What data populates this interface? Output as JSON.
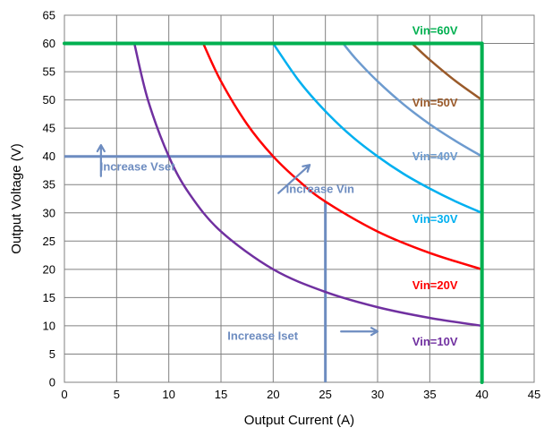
{
  "chart_data": {
    "type": "line",
    "title": "",
    "xlabel": "Output Current (A)",
    "ylabel": "Output Voltage (V)",
    "xlim": [
      0,
      45
    ],
    "ylim": [
      0,
      65
    ],
    "xticks": [
      0,
      5,
      10,
      15,
      20,
      25,
      30,
      35,
      40,
      45
    ],
    "yticks": [
      0,
      5,
      10,
      15,
      20,
      25,
      30,
      35,
      40,
      45,
      50,
      55,
      60,
      65
    ],
    "grid": true,
    "legend": "inline labels on right side",
    "series": [
      {
        "name": "Vin=10V",
        "color": "#7030a0",
        "points": [
          [
            6.7,
            60
          ],
          [
            8,
            50
          ],
          [
            10,
            40
          ],
          [
            12,
            33.3
          ],
          [
            15,
            26.7
          ],
          [
            20,
            20
          ],
          [
            25,
            16
          ],
          [
            30,
            13.3
          ],
          [
            35,
            11.4
          ],
          [
            40,
            10
          ]
        ]
      },
      {
        "name": "Vin=20V",
        "color": "#ff0000",
        "points": [
          [
            13.3,
            60
          ],
          [
            15,
            53.3
          ],
          [
            17.5,
            45.7
          ],
          [
            20,
            40
          ],
          [
            22.5,
            35.6
          ],
          [
            25,
            32
          ],
          [
            30,
            26.7
          ],
          [
            35,
            22.9
          ],
          [
            40,
            20
          ]
        ]
      },
      {
        "name": "Vin=30V",
        "color": "#00b0f0",
        "points": [
          [
            20,
            60
          ],
          [
            22.5,
            53.3
          ],
          [
            25,
            48
          ],
          [
            27.5,
            43.6
          ],
          [
            30,
            40
          ],
          [
            32.5,
            36.9
          ],
          [
            35,
            34.3
          ],
          [
            37.5,
            32
          ],
          [
            40,
            30
          ]
        ]
      },
      {
        "name": "Vin=40V",
        "color": "#6d9bcf",
        "points": [
          [
            26.7,
            60
          ],
          [
            28,
            57.1
          ],
          [
            30,
            53.3
          ],
          [
            32.5,
            49.2
          ],
          [
            35,
            45.7
          ],
          [
            37.5,
            42.7
          ],
          [
            40,
            40
          ]
        ]
      },
      {
        "name": "Vin=50V",
        "color": "#9a5a2a",
        "points": [
          [
            33.3,
            60
          ],
          [
            35,
            57.1
          ],
          [
            37.5,
            53.3
          ],
          [
            40,
            50
          ]
        ]
      },
      {
        "name": "Vin=60V",
        "color": "#00b050",
        "points": [
          [
            0,
            60
          ],
          [
            40,
            60
          ],
          [
            40,
            0
          ]
        ]
      }
    ],
    "limit_lines": [
      {
        "name": "Vset",
        "color": "#6d8cc0",
        "points": [
          [
            0,
            40
          ],
          [
            20,
            40
          ]
        ]
      },
      {
        "name": "Iset",
        "color": "#6d8cc0",
        "points": [
          [
            25,
            0
          ],
          [
            25,
            32
          ]
        ]
      }
    ],
    "annotations": [
      {
        "text": "Increase Vset",
        "color": "#6d8cc0",
        "x": 7,
        "y": 37.5
      },
      {
        "text": "Increase Vin",
        "color": "#6d8cc0",
        "x": 24.5,
        "y": 33.5
      },
      {
        "text": "Increase Iset",
        "color": "#6d8cc0",
        "x": 19,
        "y": 7.5
      }
    ],
    "arrows": [
      {
        "name": "vset-arrow",
        "from": [
          3.5,
          36.5
        ],
        "to": [
          3.5,
          42
        ]
      },
      {
        "name": "vin-arrow",
        "from": [
          20.5,
          33.5
        ],
        "to": [
          23.5,
          38.5
        ]
      },
      {
        "name": "iset-arrow",
        "from": [
          26.5,
          9
        ],
        "to": [
          30,
          9
        ]
      }
    ],
    "series_labels": [
      {
        "text": "Vin=60V",
        "color": "#00b050",
        "x": 35.5,
        "y": 61.6
      },
      {
        "text": "Vin=50V",
        "color": "#9a5a2a",
        "x": 35.5,
        "y": 48.8
      },
      {
        "text": "Vin=40V",
        "color": "#6d9bcf",
        "x": 35.5,
        "y": 39.3
      },
      {
        "text": "Vin=30V",
        "color": "#00b0f0",
        "x": 35.5,
        "y": 28.2
      },
      {
        "text": "Vin=20V",
        "color": "#ff0000",
        "x": 35.5,
        "y": 16.5
      },
      {
        "text": "Vin=10V",
        "color": "#7030a0",
        "x": 35.5,
        "y": 6.5
      }
    ]
  }
}
